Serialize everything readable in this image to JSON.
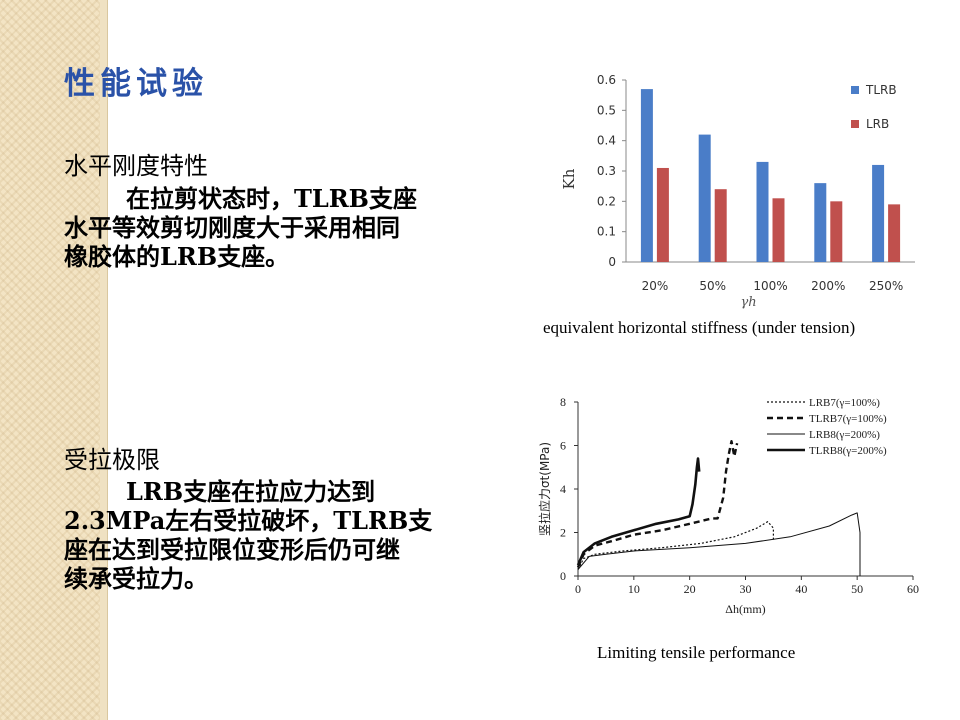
{
  "slide": {
    "title": "性能试验",
    "section1": {
      "heading": "水平刚度特性",
      "lines": [
        "在拉剪状态时，TLRB支座",
        "水平等效剪切刚度大于采用相同",
        "橡胶体的LRB支座。"
      ]
    },
    "section2": {
      "heading": "受拉极限",
      "lines": [
        "LRB支座在拉应力达到",
        "2.3MPa左右受拉破坏，TLRB支",
        "座在达到受拉限位变形后仍可继",
        "续承受拉力。"
      ]
    },
    "caption1": "equivalent horizontal stiffness (under tension)",
    "caption2": "Limiting tensile performance"
  },
  "chart_data": [
    {
      "type": "bar",
      "categories": [
        "20%",
        "50%",
        "100%",
        "200%",
        "250%"
      ],
      "series": [
        {
          "name": "TLRB",
          "values": [
            0.57,
            0.42,
            0.33,
            0.26,
            0.32
          ],
          "color": "#4a7dc8"
        },
        {
          "name": "LRB",
          "values": [
            0.31,
            0.24,
            0.21,
            0.2,
            0.19
          ],
          "color": "#c0504d"
        }
      ],
      "ylabel": "Kh",
      "xlabel": "γh",
      "ylim": [
        0,
        0.6
      ],
      "yticks": [
        "0",
        "0.1",
        "0.2",
        "0.3",
        "0.4",
        "0.5",
        "0.6"
      ],
      "legend": "top-right"
    },
    {
      "type": "line",
      "xlabel": "Δh(mm)",
      "ylabel": "竖拉应力σt(MPa)",
      "xlim": [
        0,
        60
      ],
      "ylim": [
        0,
        8
      ],
      "xticks": [
        "0",
        "10",
        "20",
        "30",
        "40",
        "50",
        "60"
      ],
      "yticks": [
        "0",
        "2",
        "4",
        "6",
        "8"
      ],
      "legend": "top-right",
      "series": [
        {
          "name": "LRB7(γ=100%)",
          "style": "dotted",
          "points": [
            [
              0,
              0.3
            ],
            [
              1,
              0.8
            ],
            [
              3,
              1.0
            ],
            [
              8,
              1.15
            ],
            [
              15,
              1.3
            ],
            [
              22,
              1.5
            ],
            [
              28,
              1.8
            ],
            [
              32,
              2.2
            ],
            [
              34,
              2.5
            ],
            [
              35,
              2.2
            ],
            [
              35,
              1.6
            ]
          ]
        },
        {
          "name": "TLRB7(γ=100%)",
          "style": "dashed",
          "points": [
            [
              0,
              0.4
            ],
            [
              1,
              1.0
            ],
            [
              3,
              1.4
            ],
            [
              6,
              1.6
            ],
            [
              10,
              1.9
            ],
            [
              15,
              2.1
            ],
            [
              20,
              2.4
            ],
            [
              24,
              2.65
            ],
            [
              25,
              2.65
            ],
            [
              26,
              3.6
            ],
            [
              26.5,
              4.8
            ],
            [
              27,
              5.6
            ],
            [
              27.5,
              6.2
            ],
            [
              28,
              5.5
            ],
            [
              28.5,
              6.1
            ]
          ]
        },
        {
          "name": "LRB8(γ=200%)",
          "style": "thin",
          "points": [
            [
              0,
              0.3
            ],
            [
              2,
              0.9
            ],
            [
              5,
              1.0
            ],
            [
              10,
              1.15
            ],
            [
              20,
              1.3
            ],
            [
              30,
              1.5
            ],
            [
              38,
              1.8
            ],
            [
              45,
              2.3
            ],
            [
              49,
              2.8
            ],
            [
              50,
              2.9
            ],
            [
              50.5,
              2.0
            ],
            [
              50.5,
              0
            ]
          ]
        },
        {
          "name": "TLRB8(γ=200%)",
          "style": "bold",
          "points": [
            [
              0,
              0.5
            ],
            [
              1,
              1.1
            ],
            [
              3,
              1.5
            ],
            [
              6,
              1.8
            ],
            [
              10,
              2.1
            ],
            [
              14,
              2.4
            ],
            [
              18,
              2.6
            ],
            [
              20,
              2.75
            ],
            [
              20.5,
              3.3
            ],
            [
              21,
              4.2
            ],
            [
              21.3,
              5.0
            ],
            [
              21.5,
              5.4
            ],
            [
              21.7,
              4.8
            ]
          ]
        }
      ]
    }
  ]
}
